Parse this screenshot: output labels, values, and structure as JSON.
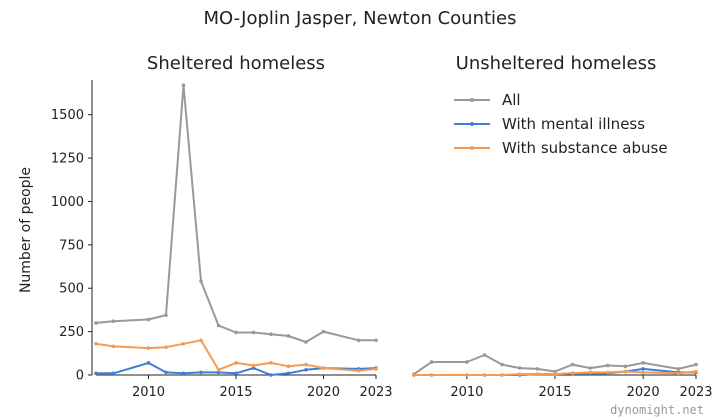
{
  "title": "MO-Joplin Jasper, Newton Counties",
  "watermark": "dynomight.net",
  "colors": {
    "all": "#999999",
    "mental": "#3a7fd8",
    "substance": "#f59a55"
  },
  "legend": {
    "placement": "top-right of right panel"
  },
  "chart_data": [
    {
      "type": "line",
      "title": "Sheltered homeless",
      "ylabel": "Number of people",
      "xlim": [
        2007,
        2023
      ],
      "ylim": [
        0,
        1700
      ],
      "xticks": [
        2010,
        2015,
        2020,
        2023
      ],
      "yticks": [
        0,
        250,
        500,
        750,
        1000,
        1250,
        1500
      ],
      "grid": false,
      "x": [
        2007,
        2008,
        2010,
        2011,
        2012,
        2013,
        2014,
        2015,
        2016,
        2017,
        2018,
        2019,
        2020,
        2022,
        2023
      ],
      "series": [
        {
          "name": "All",
          "color": "#999999",
          "values": [
            300,
            310,
            320,
            345,
            1670,
            540,
            285,
            245,
            245,
            235,
            225,
            190,
            250,
            200,
            200
          ]
        },
        {
          "name": "With mental illness",
          "color": "#3a7fd8",
          "values": [
            10,
            10,
            70,
            15,
            10,
            15,
            15,
            10,
            40,
            0,
            10,
            30,
            40,
            35,
            40
          ]
        },
        {
          "name": "With substance abuse",
          "color": "#f59a55",
          "values": [
            180,
            165,
            155,
            160,
            180,
            200,
            30,
            70,
            55,
            70,
            50,
            60,
            40,
            25,
            35
          ]
        }
      ]
    },
    {
      "type": "line",
      "title": "Unsheltered homeless",
      "xlim": [
        2007,
        2023
      ],
      "ylim": [
        0,
        1700
      ],
      "xticks": [
        2010,
        2015,
        2020,
        2023
      ],
      "grid": false,
      "x": [
        2007,
        2008,
        2010,
        2011,
        2012,
        2013,
        2014,
        2015,
        2016,
        2017,
        2018,
        2019,
        2020,
        2022,
        2023
      ],
      "series": [
        {
          "name": "All",
          "color": "#999999",
          "values": [
            5,
            75,
            75,
            115,
            60,
            40,
            35,
            20,
            60,
            40,
            55,
            50,
            70,
            35,
            60
          ]
        },
        {
          "name": "With mental illness",
          "color": "#3a7fd8",
          "values": [
            0,
            0,
            0,
            0,
            0,
            0,
            5,
            5,
            10,
            10,
            10,
            20,
            35,
            15,
            15
          ]
        },
        {
          "name": "With substance abuse",
          "color": "#f59a55",
          "values": [
            0,
            0,
            0,
            0,
            0,
            5,
            5,
            5,
            10,
            15,
            15,
            20,
            15,
            10,
            20
          ]
        }
      ]
    }
  ]
}
